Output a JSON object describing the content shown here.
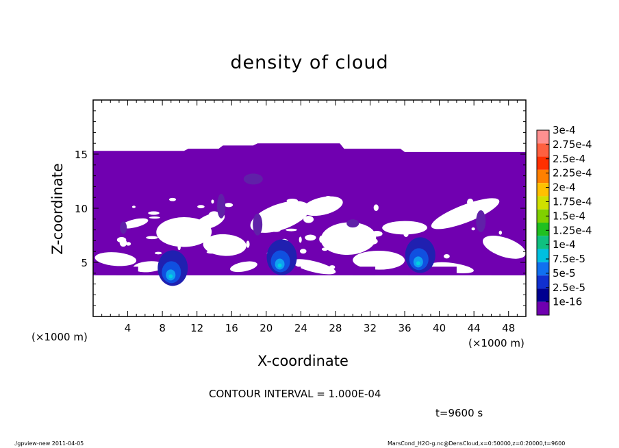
{
  "chart_data": {
    "type": "heatmap",
    "title": "density of cloud",
    "xlabel": "X-coordinate",
    "ylabel": "Z-coordinate",
    "x_unit_left": "(×1000 m)",
    "x_unit_right": "(×1000 m)",
    "xlim": [
      0,
      50
    ],
    "ylim": [
      0,
      20
    ],
    "xticks": [
      "4",
      "8",
      "12",
      "16",
      "20",
      "24",
      "28",
      "32",
      "36",
      "40",
      "44",
      "48"
    ],
    "yticks": [
      "5",
      "10",
      "15"
    ],
    "legend": {
      "placement": "right",
      "levels": [
        "3e-4",
        "2.75e-4",
        "2.5e-4",
        "2.25e-4",
        "2e-4",
        "1.75e-4",
        "1.5e-4",
        "1.25e-4",
        "1e-4",
        "7.5e-5",
        "5e-5",
        "2.5e-5",
        "1e-16"
      ],
      "colors": [
        "#ff9090",
        "#ff6040",
        "#ff3000",
        "#ff8000",
        "#ffc000",
        "#d0e000",
        "#80d000",
        "#20c020",
        "#10c080",
        "#00c0e0",
        "#1070f0",
        "#1030d0",
        "#000090",
        "#7000b0"
      ]
    },
    "cloud_top_profile": {
      "x": [
        0,
        10.5,
        11,
        14.5,
        15,
        18.5,
        19,
        28.5,
        29,
        35.5,
        36,
        50
      ],
      "z": [
        15.3,
        15.3,
        15.5,
        15.5,
        15.8,
        15.8,
        16.0,
        16.0,
        15.5,
        15.5,
        15.2,
        15.2
      ]
    },
    "cloud_base_z": 3.8,
    "dense_cores": [
      {
        "x": 9.2,
        "z": 4.6,
        "level": "2.5e-5"
      },
      {
        "x": 21.8,
        "z": 5.6,
        "level": "2.5e-5"
      },
      {
        "x": 37.8,
        "z": 5.8,
        "level": "2.5e-5"
      }
    ]
  },
  "contour_interval": "CONTOUR INTERVAL = 1.000E-04",
  "time_label": "t=9600 s",
  "footer_left": "./gpview-new  2011-04-05",
  "footer_right": "MarsCond_H2O-g.nc@DensCloud,x=0:50000,z=0:20000,t=9600"
}
